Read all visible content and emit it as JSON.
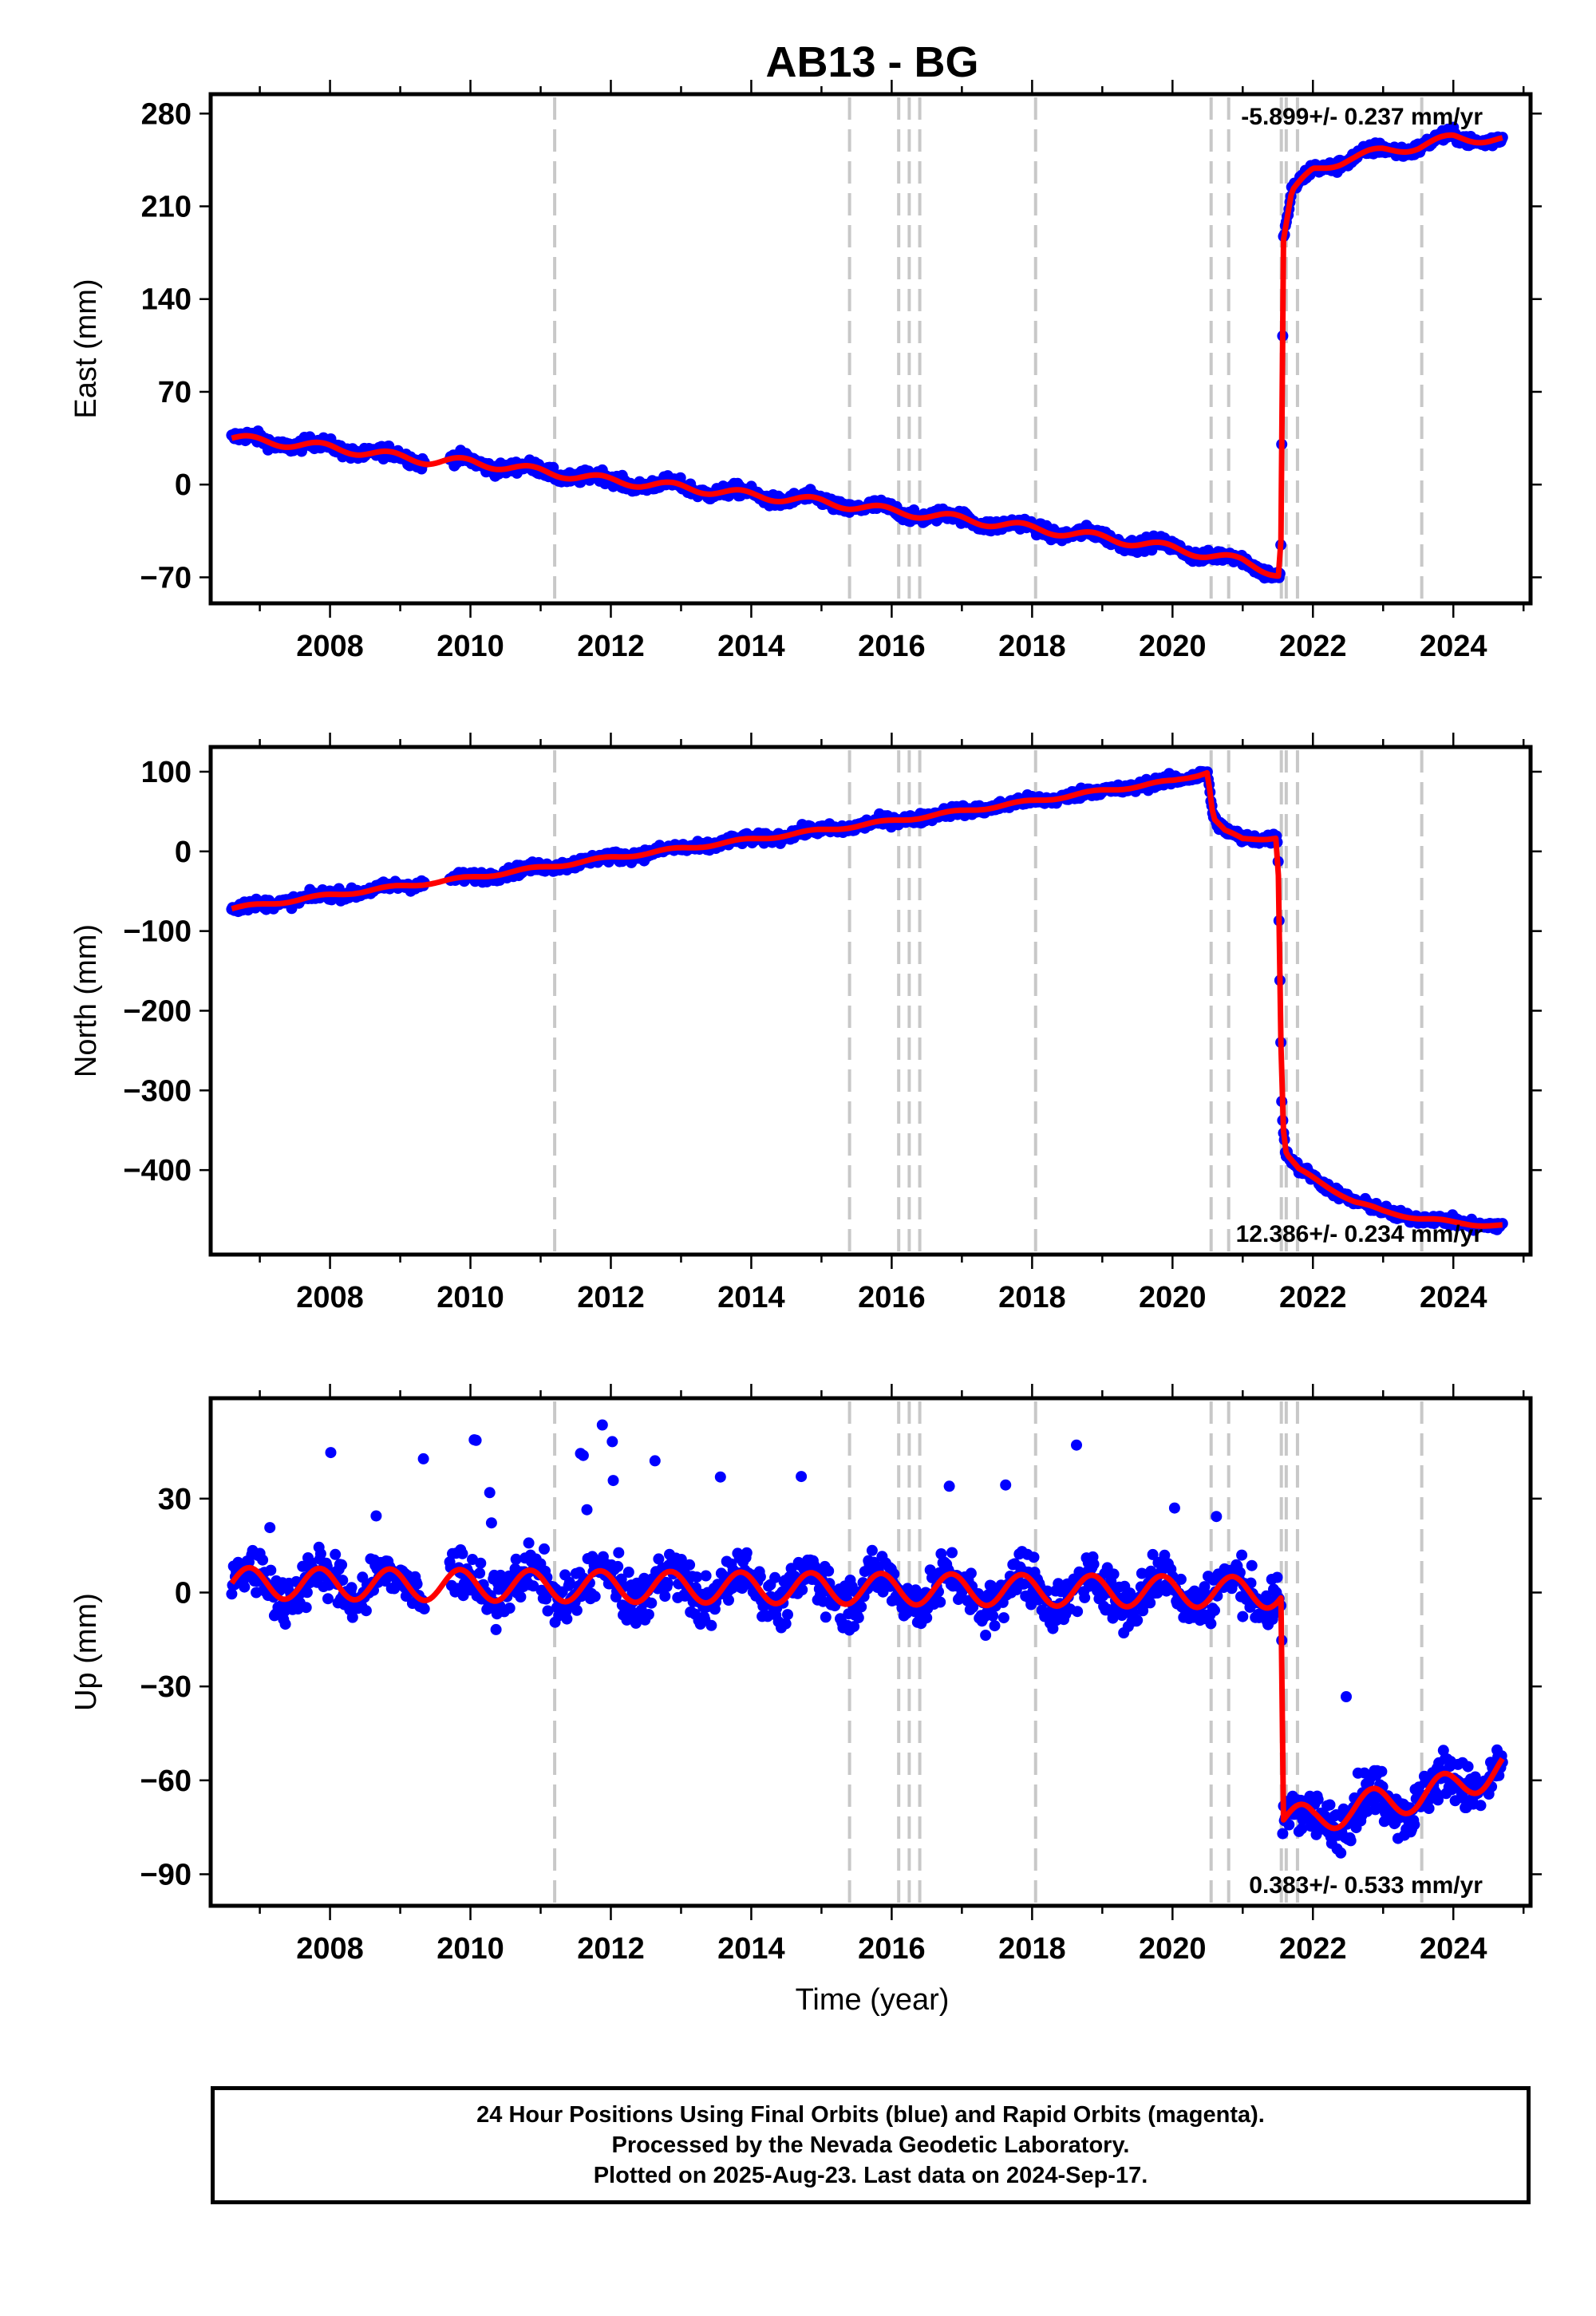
{
  "chart_data": {
    "title": "AB13 - BG",
    "x_range": [
      2006.3,
      2025.1
    ],
    "x_ticks": [
      2008,
      2010,
      2012,
      2014,
      2016,
      2018,
      2020,
      2022,
      2024
    ],
    "x_tick_labels": [
      "2008",
      "2010",
      "2012",
      "2014",
      "2016",
      "2018",
      "2020",
      "2022",
      "2024"
    ],
    "xlabel": "Time (year)",
    "event_lines": [
      2011.2,
      2015.4,
      2016.1,
      2016.25,
      2016.4,
      2018.05,
      2020.55,
      2020.8,
      2021.55,
      2021.62,
      2021.78,
      2023.55
    ],
    "panels": [
      {
        "type": "scatter",
        "ylabel": "East (mm)",
        "ylim": [
          -80,
          285
        ],
        "y_ticks": [
          280,
          210,
          140,
          70,
          0,
          -70
        ],
        "y_tick_labels": [
          "280",
          "210",
          "140",
          "70",
          "0",
          "−70"
        ],
        "rate_text": "-5.899+/- 0.237 mm/yr",
        "rate_position": "top-right",
        "data_span": [
          2006.6,
          2024.7
        ],
        "series": [
          {
            "name": "",
            "x": [
              2006.6,
              2008.0,
              2009.4,
              2010.0,
              2011.0,
              2012.0,
              2013.0,
              2014.0,
              2015.0,
              2016.0,
              2017.0,
              2018.0,
              2019.0,
              2020.0,
              2021.0,
              2021.54,
              2021.58,
              2021.7,
              2022.0,
              2022.5,
              2023.0,
              2023.5,
              2024.0,
              2024.7
            ],
            "y": [
              35,
              28,
              18,
              17,
              10,
              3,
              -2,
              -8,
              -13,
              -20,
              -26,
              -33,
              -40,
              -48,
              -58,
              -68,
              185,
              220,
              237,
              246,
              252,
              255,
              262,
              260
            ]
          }
        ]
      },
      {
        "type": "scatter",
        "ylabel": "North (mm)",
        "ylim": [
          -490,
          115
        ],
        "y_ticks": [
          100,
          0,
          -100,
          -200,
          -300,
          -400
        ],
        "y_tick_labels": [
          "100",
          "0",
          "−100",
          "−200",
          "−300",
          "−400"
        ],
        "rate_text": "12.386+/- 0.234 mm/yr",
        "rate_position": "bottom-right",
        "data_span": [
          2006.6,
          2024.7
        ],
        "series": [
          {
            "name": "",
            "x": [
              2006.6,
              2008.0,
              2010.0,
              2012.0,
              2014.0,
              2016.0,
              2018.0,
              2019.0,
              2020.0,
              2020.5,
              2020.58,
              2020.75,
              2021.0,
              2021.5,
              2021.56,
              2021.62,
              2021.8,
              2022.2,
              2022.6,
              2023.0,
              2023.5,
              2024.0,
              2024.7
            ],
            "y": [
              -72,
              -55,
              -33,
              -8,
              15,
              38,
              63,
              76,
              88,
              100,
              42,
              25,
              15,
              18,
              -335,
              -380,
              -400,
              -420,
              -440,
              -452,
              -460,
              -466,
              -470
            ]
          }
        ]
      },
      {
        "type": "scatter",
        "ylabel": "Up (mm)",
        "ylim": [
          -96,
          58
        ],
        "y_ticks": [
          30,
          0,
          -30,
          -60,
          -90
        ],
        "y_tick_labels": [
          "30",
          "0",
          "−30",
          "−60",
          "−90"
        ],
        "rate_text": "0.383+/- 0.533 mm/yr",
        "rate_position": "bottom-right",
        "data_span": [
          2006.6,
          2024.7
        ],
        "series": [
          {
            "name": "",
            "x": [
              2006.6,
              2021.55,
              2021.57,
              2022.0,
              2022.5,
              2023.0,
              2023.5,
              2024.0,
              2024.7
            ],
            "y": [
              3,
              0,
              -72,
              -73,
              -69,
              -67,
              -65,
              -62,
              -56
            ]
          }
        ]
      }
    ],
    "legend": "none",
    "grid": false
  },
  "footer": {
    "line1": "24 Hour Positions Using Final Orbits (blue) and Rapid Orbits (magenta).",
    "line2": "Processed by the Nevada Geodetic Laboratory.",
    "line3": "Plotted on 2025-Aug-23. Last data on 2024-Sep-17."
  },
  "colors": {
    "points": "#0000ff",
    "fit": "#ff0000",
    "events": "#c8c8c8"
  }
}
